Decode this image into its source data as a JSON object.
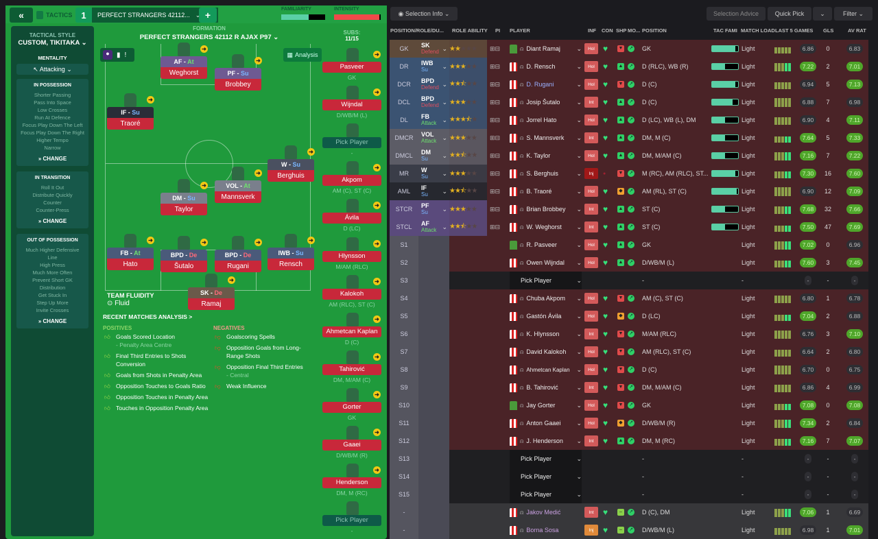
{
  "topbar": {
    "back": "«",
    "tactics_label": "TACTICS",
    "slot": "1",
    "tactic_name": "PERFECT STRANGERS 42112...",
    "add": "+",
    "familiarity_label": "FAMILIARITY",
    "familiarity": 0.62,
    "intensity_label": "INTENSITY",
    "intensity": 0.97
  },
  "sidebar": {
    "style_label": "TACTICAL STYLE",
    "style_value": "CUSTOM, TIKITAKA",
    "mentality_label": "MENTALITY",
    "mentality_value": "Attacking",
    "sections": [
      {
        "title": "IN POSSESSION",
        "items": [
          "Shorter Passing",
          "Pass Into Space",
          "Low Crosses",
          "Run At Defence",
          "Focus Play Down The Left",
          "Focus Play Down The Right",
          "Higher Tempo",
          "Narrow"
        ],
        "change": "CHANGE"
      },
      {
        "title": "IN TRANSITION",
        "items": [
          "Roll It Out",
          "Distribute Quickly",
          "Counter",
          "Counter-Press"
        ],
        "change": "CHANGE"
      },
      {
        "title": "OUT OF POSSESSION",
        "items": [
          "Much Higher Defensive",
          "Line",
          "High Press",
          "Much More Often",
          "Prevent Short GK",
          "Distribution",
          "Get Stuck In",
          "Step Up More",
          "Invite Crosses"
        ],
        "change": "CHANGE"
      }
    ]
  },
  "formation": {
    "label": "FORMATION",
    "name": "PERFECT STRANGERS 42112 R AJAX P97",
    "analysis": "Analysis",
    "subs_label": "SUBS:",
    "subs_count": "11/15",
    "fluidity_label": "TEAM FLUIDITY",
    "fluidity_value": "Fluid"
  },
  "pitch_players": [
    {
      "role": "AF",
      "duty": "At",
      "name": "Weghorst"
    },
    {
      "role": "PF",
      "duty": "Su",
      "name": "Brobbey"
    },
    {
      "role": "IF",
      "duty": "Su",
      "name": "Traoré"
    },
    {
      "role": "W",
      "duty": "Su",
      "name": "Berghuis"
    },
    {
      "role": "VOL",
      "duty": "At",
      "name": "Mannsverk"
    },
    {
      "role": "DM",
      "duty": "Su",
      "name": "Taylor"
    },
    {
      "role": "FB",
      "duty": "At",
      "name": "Hato"
    },
    {
      "role": "BPD",
      "duty": "De",
      "name": "Šutalo"
    },
    {
      "role": "BPD",
      "duty": "De",
      "name": "Rugani"
    },
    {
      "role": "IWB",
      "duty": "Su",
      "name": "Rensch"
    },
    {
      "role": "SK",
      "duty": "De",
      "name": "Ramaj"
    }
  ],
  "subs": [
    {
      "name": "Pasveer",
      "pos": "GK"
    },
    {
      "name": "Wijndal",
      "pos": "D/WB/M (L)"
    },
    {
      "name": "Pick Player",
      "pos": "-",
      "pick": true
    },
    {
      "name": "Akpom",
      "pos": "AM (C), ST (C)"
    },
    {
      "name": "Ávila",
      "pos": "D (LC)"
    },
    {
      "name": "Hlynsson",
      "pos": "M/AM (RLC)"
    },
    {
      "name": "Kalokoh",
      "pos": "AM (RLC), ST (C)"
    },
    {
      "name": "Ahmetcan Kaplan",
      "pos": "D (C)"
    },
    {
      "name": "Tahirović",
      "pos": "DM, M/AM (C)"
    },
    {
      "name": "Gorter",
      "pos": "GK"
    },
    {
      "name": "Gaaei",
      "pos": "D/WB/M (R)"
    },
    {
      "name": "Henderson",
      "pos": "DM, M (RC)"
    },
    {
      "name": "Pick Player",
      "pos": "-",
      "pick": true
    }
  ],
  "analysis": {
    "title": "RECENT MATCHES ANALYSIS >",
    "positives_label": "POSITIVES",
    "negatives_label": "NEGATIVES",
    "positives": [
      {
        "text": "Goals Scored Location",
        "sub": "- Penalty Area Centre"
      },
      {
        "text": "Final Third Entries to Shots Conversion"
      },
      {
        "text": "Goals from Shots in Penalty Area"
      },
      {
        "text": "Opposition Touches to Goals Ratio"
      },
      {
        "text": "Opposition Touches in Penalty Area"
      },
      {
        "text": "Touches in Opposition Penalty Area"
      }
    ],
    "negatives": [
      {
        "text": "Goalscoring Spells"
      },
      {
        "text": "Opposition Goals from Long-Range Shots"
      },
      {
        "text": "Opposition Final Third Entries",
        "sub": "- Central"
      },
      {
        "text": "Weak Influence"
      }
    ]
  },
  "toolbar": {
    "selection_info": "Selection Info",
    "selection_advice": "Selection Advice",
    "quick_pick": "Quick Pick",
    "filter": "Filter"
  },
  "columns": [
    "POSITION/ROLE/DU...",
    "ROLE ABILITY",
    "PI",
    "PLAYER",
    "INF",
    "CON",
    "SHP",
    "MO...",
    "POSITION",
    "TAC FAMI",
    "MATCH LOAD",
    "LAST 5 GAMES",
    "GLS",
    "AV RAT"
  ],
  "rows": [
    {
      "pos": "GK",
      "role": "SK",
      "duty": "Defend",
      "stars": 2,
      "player": "Diant Ramaj",
      "gk": true,
      "inf": "Hol",
      "shp": "bad",
      "position": "GK",
      "tac": 0.9,
      "load": "Light",
      "last": "6.86",
      "lg": false,
      "gls": "0",
      "av": "6.83",
      "ag": false
    },
    {
      "pos": "DR",
      "role": "IWB",
      "duty": "Su",
      "stars": 3,
      "player": "D. Rensch",
      "inf": "Hol",
      "shp": "good",
      "position": "D (RLC), WB (R)",
      "tac": 0.5,
      "load": "Light",
      "last": "7.22",
      "lg": true,
      "gls": "2",
      "av": "7.01",
      "ag": true
    },
    {
      "pos": "DCR",
      "role": "BPD",
      "duty": "Defend",
      "stars": 2.5,
      "player": "D. Rugani",
      "inf": "Hol",
      "shp": "bad",
      "position": "D (C)",
      "tac": 0.9,
      "load": "Light",
      "last": "6.94",
      "lg": false,
      "gls": "5",
      "av": "7.13",
      "ag": true
    },
    {
      "pos": "DCL",
      "role": "BPD",
      "duty": "Defend",
      "stars": 3,
      "player": "Josip Šutalo",
      "inf": "Int",
      "shp": "good",
      "position": "D (C)",
      "tac": 0.8,
      "load": "Light",
      "last": "6.88",
      "lg": false,
      "gls": "7",
      "av": "6.98",
      "ag": false
    },
    {
      "pos": "DL",
      "role": "FB",
      "duty": "Attack",
      "stars": 3.5,
      "player": "Jorrel Hato",
      "inf": "Hol",
      "shp": "good",
      "position": "D (LC), WB (L), DM",
      "tac": 0.5,
      "load": "Light",
      "last": "6.90",
      "lg": false,
      "gls": "4",
      "av": "7.11",
      "ag": true
    },
    {
      "pos": "DMCR",
      "role": "VOL",
      "duty": "Attack",
      "stars": 3,
      "player": "S. Mannsverk",
      "inf": "Int",
      "shp": "good",
      "position": "DM, M (C)",
      "tac": 0.5,
      "load": "Light",
      "last": "7.64",
      "lg": true,
      "gls": "5",
      "av": "7.33",
      "ag": true
    },
    {
      "pos": "DMCL",
      "role": "DM",
      "duty": "Su",
      "stars": 2.5,
      "player": "K. Taylor",
      "inf": "Hol",
      "shp": "good",
      "position": "DM, M/AM (C)",
      "tac": 0.5,
      "load": "Light",
      "last": "7.16",
      "lg": true,
      "gls": "7",
      "av": "7.22",
      "ag": true
    },
    {
      "pos": "MR",
      "role": "W",
      "duty": "Su",
      "stars": 3,
      "player": "S. Berghuis",
      "inf": "Inj",
      "shp": "bad",
      "position": "M (RC), AM (RLC), ST...",
      "tac": 0.9,
      "load": "Light",
      "last": "7.30",
      "lg": true,
      "gls": "16",
      "av": "7.60",
      "ag": true
    },
    {
      "pos": "AML",
      "role": "IF",
      "duty": "Su",
      "stars": 2.5,
      "player": "B. Traoré",
      "inf": "Hol",
      "shp": "ok",
      "position": "AM (RL), ST (C)",
      "tac": 0.95,
      "load": "Light",
      "last": "6.90",
      "lg": false,
      "gls": "12",
      "av": "7.09",
      "ag": true
    },
    {
      "pos": "STCR",
      "role": "PF",
      "duty": "Su",
      "stars": 3,
      "player": "Brian Brobbey",
      "inf": "Int",
      "shp": "good",
      "position": "ST (C)",
      "tac": 0.5,
      "load": "Light",
      "last": "7.68",
      "lg": true,
      "gls": "32",
      "av": "7.66",
      "ag": true
    },
    {
      "pos": "STCL",
      "role": "AF",
      "duty": "Attack",
      "stars": 2.5,
      "player": "W. Weghorst",
      "inf": "Int",
      "shp": "good",
      "position": "ST (C)",
      "tac": 0.5,
      "load": "Light",
      "last": "7.50",
      "lg": true,
      "gls": "47",
      "av": "7.69",
      "ag": true
    },
    {
      "pos": "S1",
      "player": "R. Pasveer",
      "gk": true,
      "inf": "Hol",
      "shp": "good",
      "position": "GK",
      "load": "Light",
      "last": "7.02",
      "lg": true,
      "gls": "0",
      "av": "6.96",
      "ag": false
    },
    {
      "pos": "S2",
      "player": "Owen Wijndal",
      "inf": "Hol",
      "shp": "good",
      "position": "D/WB/M (L)",
      "load": "Light",
      "last": "7.60",
      "lg": true,
      "gls": "3",
      "av": "7.45",
      "ag": true
    },
    {
      "pos": "S3",
      "pick": true,
      "player": "Pick Player",
      "position": "-",
      "load": "-",
      "last": "-",
      "gls": "-",
      "av": "-"
    },
    {
      "pos": "S4",
      "player": "Chuba Akpom",
      "inf": "Hol",
      "shp": "bad",
      "position": "AM (C), ST (C)",
      "load": "Light",
      "last": "6.80",
      "lg": false,
      "gls": "1",
      "av": "6.78",
      "ag": false
    },
    {
      "pos": "S5",
      "player": "Gastón Ávila",
      "inf": "Hol",
      "shp": "ok",
      "position": "D (LC)",
      "load": "Light",
      "last": "7.04",
      "lg": true,
      "gls": "2",
      "av": "6.88",
      "ag": false
    },
    {
      "pos": "S6",
      "player": "K. Hlynsson",
      "inf": "Int",
      "shp": "bad",
      "position": "M/AM (RLC)",
      "load": "Light",
      "last": "6.76",
      "lg": false,
      "gls": "3",
      "av": "7.10",
      "ag": true
    },
    {
      "pos": "S7",
      "player": "David Kalokoh",
      "inf": "Hol",
      "shp": "bad",
      "position": "AM (RLC), ST (C)",
      "load": "Light",
      "last": "6.64",
      "lg": false,
      "gls": "2",
      "av": "6.80",
      "ag": false
    },
    {
      "pos": "S8",
      "player": "Ahmetcan Kaplan",
      "inf": "Hol",
      "shp": "bad",
      "position": "D (C)",
      "load": "Light",
      "last": "6.70",
      "lg": false,
      "gls": "0",
      "av": "6.75",
      "ag": false
    },
    {
      "pos": "S9",
      "player": "B. Tahirović",
      "inf": "Int",
      "shp": "bad",
      "position": "DM, M/AM (C)",
      "load": "Light",
      "last": "6.86",
      "lg": false,
      "gls": "4",
      "av": "6.99",
      "ag": false
    },
    {
      "pos": "S10",
      "player": "Jay Gorter",
      "gk": true,
      "inf": "Hol",
      "shp": "bad",
      "position": "GK",
      "load": "Light",
      "last": "7.08",
      "lg": true,
      "gls": "0",
      "av": "7.08",
      "ag": true
    },
    {
      "pos": "S11",
      "player": "Anton Gaaei",
      "inf": "Hol",
      "shp": "ok",
      "position": "D/WB/M (R)",
      "load": "Light",
      "last": "7.34",
      "lg": true,
      "gls": "2",
      "av": "6.84",
      "ag": false
    },
    {
      "pos": "S12",
      "player": "J. Henderson",
      "inf": "Int",
      "shp": "good",
      "position": "DM, M (RC)",
      "load": "Light",
      "last": "7.16",
      "lg": true,
      "gls": "7",
      "av": "7.07",
      "ag": true
    },
    {
      "pos": "S13",
      "pick": true,
      "player": "Pick Player",
      "position": "-",
      "load": "-",
      "last": "-",
      "gls": "-",
      "av": "-"
    },
    {
      "pos": "S14",
      "pick": true,
      "player": "Pick Player",
      "position": "-",
      "load": "-",
      "last": "-",
      "gls": "-",
      "av": "-"
    },
    {
      "pos": "S15",
      "pick": true,
      "player": "Pick Player",
      "position": "-",
      "load": "-",
      "last": "-",
      "gls": "-",
      "av": "-"
    },
    {
      "pos": "-",
      "other": true,
      "player": "Jakov Medić",
      "inf": "Int",
      "shp": "neutral",
      "position": "D (C), DM",
      "load": "Light",
      "last": "7.06",
      "lg": true,
      "gls": "1",
      "av": "6.69",
      "ag": false
    },
    {
      "pos": "-",
      "other": true,
      "player": "Borna Sosa",
      "inf": "Inj",
      "shp": "neutral",
      "position": "D/WB/M (L)",
      "load": "Light",
      "last": "6.98",
      "lg": false,
      "gls": "1",
      "av": "7.01",
      "ag": true
    }
  ],
  "colors": {
    "pitch": "#1f9a3c",
    "card_name": "#c8283a",
    "rating_good": "#4fa62a",
    "row_selected": "#4a2327"
  }
}
